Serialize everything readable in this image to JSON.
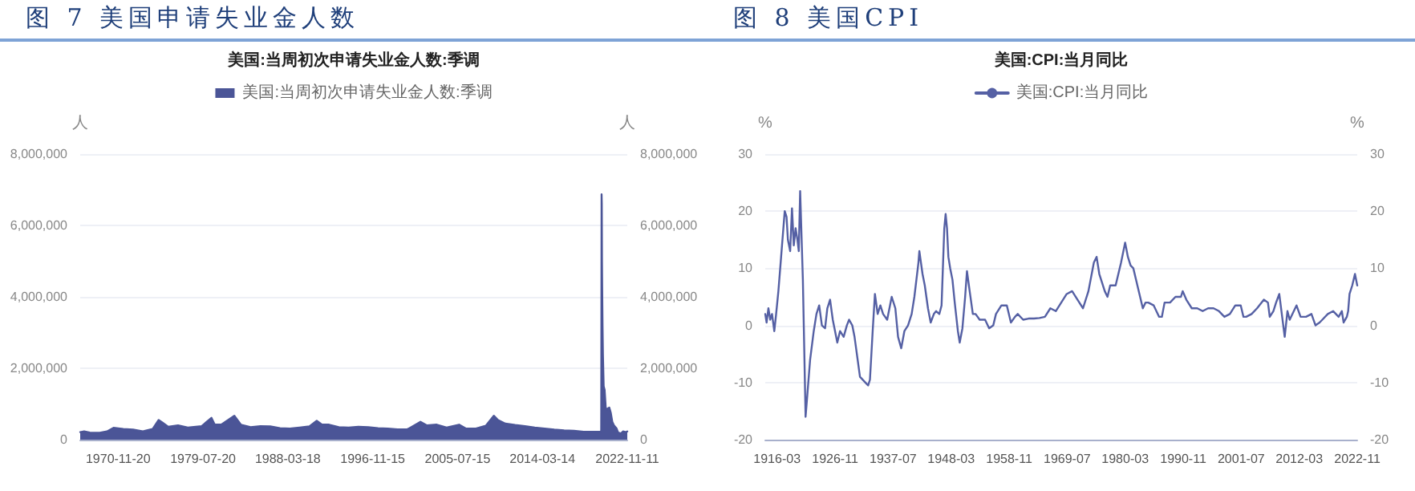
{
  "chart_data": [
    {
      "type": "area",
      "title": "图 7 美国申请失业金人数",
      "subtitle": "美国:当周初次申请失业金人数:季调",
      "ylabel": "人",
      "y2label": "人",
      "x": [
        "1967-01-07",
        "1967-06-01",
        "1968-01-01",
        "1969-01-01",
        "1969-10-01",
        "1970-06-01",
        "1971-06-01",
        "1972-06-01",
        "1973-06-01",
        "1974-06-01",
        "1975-01-10",
        "1975-06-01",
        "1976-01-01",
        "1977-01-01",
        "1978-01-01",
        "1979-06-01",
        "1980-05-30",
        "1980-10-01",
        "1981-06-01",
        "1982-10-01",
        "1983-06-01",
        "1984-06-01",
        "1985-06-01",
        "1986-06-01",
        "1987-06-01",
        "1988-06-01",
        "1989-06-01",
        "1990-06-01",
        "1991-03-01",
        "1991-09-01",
        "1992-06-01",
        "1993-06-01",
        "1994-06-01",
        "1995-06-01",
        "1996-06-01",
        "1997-06-01",
        "1998-06-01",
        "1999-06-01",
        "2000-06-01",
        "2001-10-01",
        "2002-06-01",
        "2003-06-01",
        "2004-06-01",
        "2005-09-10",
        "2006-06-01",
        "2007-06-01",
        "2008-06-01",
        "2009-03-27",
        "2009-09-01",
        "2010-06-01",
        "2011-06-01",
        "2012-06-01",
        "2013-06-01",
        "2014-06-01",
        "2015-06-01",
        "2016-06-01",
        "2017-06-01",
        "2018-06-01",
        "2019-06-01",
        "2020-03-07",
        "2020-03-14",
        "2020-03-21",
        "2020-03-28",
        "2020-04-04",
        "2020-04-11",
        "2020-04-18",
        "2020-05-02",
        "2020-05-16",
        "2020-06-13",
        "2020-07-18",
        "2020-08-29",
        "2020-10-03",
        "2021-01-09",
        "2021-03-06",
        "2021-05-01",
        "2021-07-03",
        "2021-10-02",
        "2021-12-04",
        "2022-03-19",
        "2022-06-04",
        "2022-09-17",
        "2022-11-11"
      ],
      "series": [
        {
          "name": "美国:当周初次申请失业金人数:季调",
          "color": "#4b5597",
          "values": [
            210000,
            230000,
            200000,
            190000,
            230000,
            330000,
            300000,
            280000,
            230000,
            300000,
            550000,
            480000,
            360000,
            400000,
            340000,
            380000,
            610000,
            420000,
            420000,
            670000,
            420000,
            350000,
            380000,
            370000,
            320000,
            310000,
            340000,
            370000,
            530000,
            430000,
            420000,
            350000,
            340000,
            360000,
            350000,
            320000,
            310000,
            290000,
            290000,
            500000,
            400000,
            420000,
            340000,
            420000,
            310000,
            310000,
            390000,
            670000,
            550000,
            450000,
            410000,
            380000,
            340000,
            310000,
            280000,
            260000,
            250000,
            220000,
            220000,
            220000,
            280000,
            3300000,
            6870000,
            6600000,
            5000000,
            4300000,
            3200000,
            2400000,
            1500000,
            1400000,
            900000,
            850000,
            900000,
            750000,
            500000,
            400000,
            320000,
            200000,
            170000,
            230000,
            210000,
            230000
          ]
        }
      ],
      "xlim": [
        "1967-01-07",
        "2022-11-11"
      ],
      "xticks": [
        "1970-11-20",
        "1979-07-20",
        "1988-03-18",
        "1996-11-15",
        "2005-07-15",
        "2014-03-14",
        "2022-11-11"
      ],
      "ylim": [
        0,
        8000000
      ],
      "yticks": [
        0,
        {
          "value": 2000000,
          "label": "2,000,000"
        },
        {
          "value": 4000000,
          "label": "4,000,000"
        },
        {
          "value": 6000000,
          "label": "6,000,000"
        },
        {
          "value": 8000000,
          "label": "8,000,000"
        }
      ],
      "y2lim": [
        0,
        8000000
      ],
      "y2ticks": [
        0,
        {
          "value": 2000000,
          "label": "2,000,000"
        },
        {
          "value": 4000000,
          "label": "4,000,000"
        },
        {
          "value": 6000000,
          "label": "6,000,000"
        },
        {
          "value": 8000000,
          "label": "8,000,000"
        }
      ],
      "grid": "y",
      "legend": "top",
      "marker": "none",
      "line_style": "solid"
    },
    {
      "type": "line",
      "title": "图 8 美国CPI",
      "subtitle": "美国:CPI:当月同比",
      "ylabel": "%",
      "y2label": "%",
      "x": [
        "1914-01",
        "1914-04",
        "1914-08",
        "1914-12",
        "1915-04",
        "1915-09",
        "1916-01",
        "1916-06",
        "1916-12",
        "1917-06",
        "1917-08",
        "1917-12",
        "1918-03",
        "1918-08",
        "1918-12",
        "1919-04",
        "1919-08",
        "1919-12",
        "1920-03",
        "1920-06",
        "1920-12",
        "1921-06",
        "1921-10",
        "1922-04",
        "1922-12",
        "1923-06",
        "1923-12",
        "1924-06",
        "1925-01",
        "1925-06",
        "1925-12",
        "1926-06",
        "1927-04",
        "1927-10",
        "1928-06",
        "1929-01",
        "1929-06",
        "1930-01",
        "1930-06",
        "1931-06",
        "1932-06",
        "1932-12",
        "1933-04",
        "1933-10",
        "1934-03",
        "1934-09",
        "1935-03",
        "1935-09",
        "1936-06",
        "1937-04",
        "1937-12",
        "1938-06",
        "1939-01",
        "1939-08",
        "1940-04",
        "1940-12",
        "1941-06",
        "1942-03",
        "1942-05",
        "1942-12",
        "1943-05",
        "1943-12",
        "1944-06",
        "1945-01",
        "1945-06",
        "1946-01",
        "1946-06",
        "1946-12",
        "1947-03",
        "1947-06",
        "1947-09",
        "1948-01",
        "1948-06",
        "1948-11",
        "1949-06",
        "1949-10",
        "1950-04",
        "1950-10",
        "1951-02",
        "1951-08",
        "1952-03",
        "1952-09",
        "1953-06",
        "1954-06",
        "1955-03",
        "1955-12",
        "1956-06",
        "1957-06",
        "1958-06",
        "1959-03",
        "1959-12",
        "1960-06",
        "1961-06",
        "1962-06",
        "1963-06",
        "1964-06",
        "1965-06",
        "1966-06",
        "1967-06",
        "1968-06",
        "1969-06",
        "1970-06",
        "1971-06",
        "1972-06",
        "1973-06",
        "1974-06",
        "1974-12",
        "1975-06",
        "1976-06",
        "1976-12",
        "1977-06",
        "1978-06",
        "1979-06",
        "1980-03",
        "1980-09",
        "1981-03",
        "1981-09",
        "1982-06",
        "1983-06",
        "1983-12",
        "1984-06",
        "1985-06",
        "1986-06",
        "1986-12",
        "1987-06",
        "1988-06",
        "1989-06",
        "1990-06",
        "1990-10",
        "1991-06",
        "1992-06",
        "1993-06",
        "1994-06",
        "1995-06",
        "1996-06",
        "1997-06",
        "1998-06",
        "1999-06",
        "2000-06",
        "2001-06",
        "2001-12",
        "2002-06",
        "2003-06",
        "2004-06",
        "2005-09",
        "2006-06",
        "2006-10",
        "2007-06",
        "2007-12",
        "2008-07",
        "2009-07",
        "2010-01",
        "2010-06",
        "2011-09",
        "2012-06",
        "2013-06",
        "2014-06",
        "2015-03",
        "2015-12",
        "2016-06",
        "2017-06",
        "2018-06",
        "2019-06",
        "2020-01",
        "2020-05",
        "2020-12",
        "2021-03",
        "2021-06",
        "2021-12",
        "2022-06",
        "2022-11"
      ],
      "series": [
        {
          "name": "美国:CPI:当月同比",
          "color": "#5560a4",
          "values": [
            2,
            0.5,
            3,
            1,
            2,
            -1,
            2,
            6,
            12,
            18,
            20,
            19,
            15,
            13,
            20.5,
            14,
            17,
            15,
            13,
            23.5,
            8,
            -16,
            -12,
            -6,
            -1,
            2,
            3.5,
            0,
            -0.5,
            3,
            4.5,
            1,
            -3,
            -1,
            -2,
            0,
            1,
            0,
            -2,
            -9,
            -10,
            -10.5,
            -9.5,
            -1,
            5.5,
            2,
            3.5,
            2,
            1,
            5,
            3,
            -2,
            -4,
            -1,
            0,
            2,
            5,
            11,
            13,
            9,
            7,
            3,
            0.5,
            2,
            2.5,
            2,
            3.5,
            17,
            19.5,
            17,
            12,
            10,
            8,
            4,
            -1,
            -3,
            -0.5,
            5,
            9.5,
            6,
            2,
            2,
            1,
            1,
            -0.5,
            0,
            2,
            3.5,
            3.5,
            0.5,
            1.5,
            2,
            1,
            1.2,
            1.2,
            1.3,
            1.5,
            3,
            2.5,
            4,
            5.5,
            6,
            4.5,
            3,
            6,
            11,
            12,
            9,
            6,
            5,
            7,
            7,
            11,
            14.5,
            12,
            10.5,
            10,
            7,
            3,
            4,
            4,
            3.5,
            1.5,
            1.5,
            4,
            4,
            5,
            5,
            6,
            4.5,
            3,
            3,
            2.5,
            3,
            3,
            2.5,
            1.5,
            2,
            3.5,
            3.5,
            1.5,
            1.5,
            2,
            3,
            4.5,
            4,
            1.5,
            2.5,
            4,
            5.5,
            -2,
            2.5,
            1,
            3.5,
            1.5,
            1.5,
            2,
            0,
            0.5,
            1,
            2,
            2.5,
            1.5,
            2.5,
            0.5,
            1.5,
            2.5,
            5.5,
            7,
            9,
            7
          ]
        }
      ],
      "xlim": [
        "1914-01",
        "2022-11"
      ],
      "xticks": [
        "1916-03",
        "1926-11",
        "1937-07",
        "1948-03",
        "1958-11",
        "1969-07",
        "1980-03",
        "1990-11",
        "2001-07",
        "2012-03",
        "2022-11"
      ],
      "ylim": [
        -20,
        30
      ],
      "yticks": [
        -20,
        -10,
        0,
        10,
        20,
        30
      ],
      "y2lim": [
        -20,
        30
      ],
      "y2ticks": [
        -20,
        -10,
        0,
        10,
        20,
        30
      ],
      "grid": "y",
      "legend": "top",
      "marker": "none",
      "line_style": "solid"
    }
  ]
}
